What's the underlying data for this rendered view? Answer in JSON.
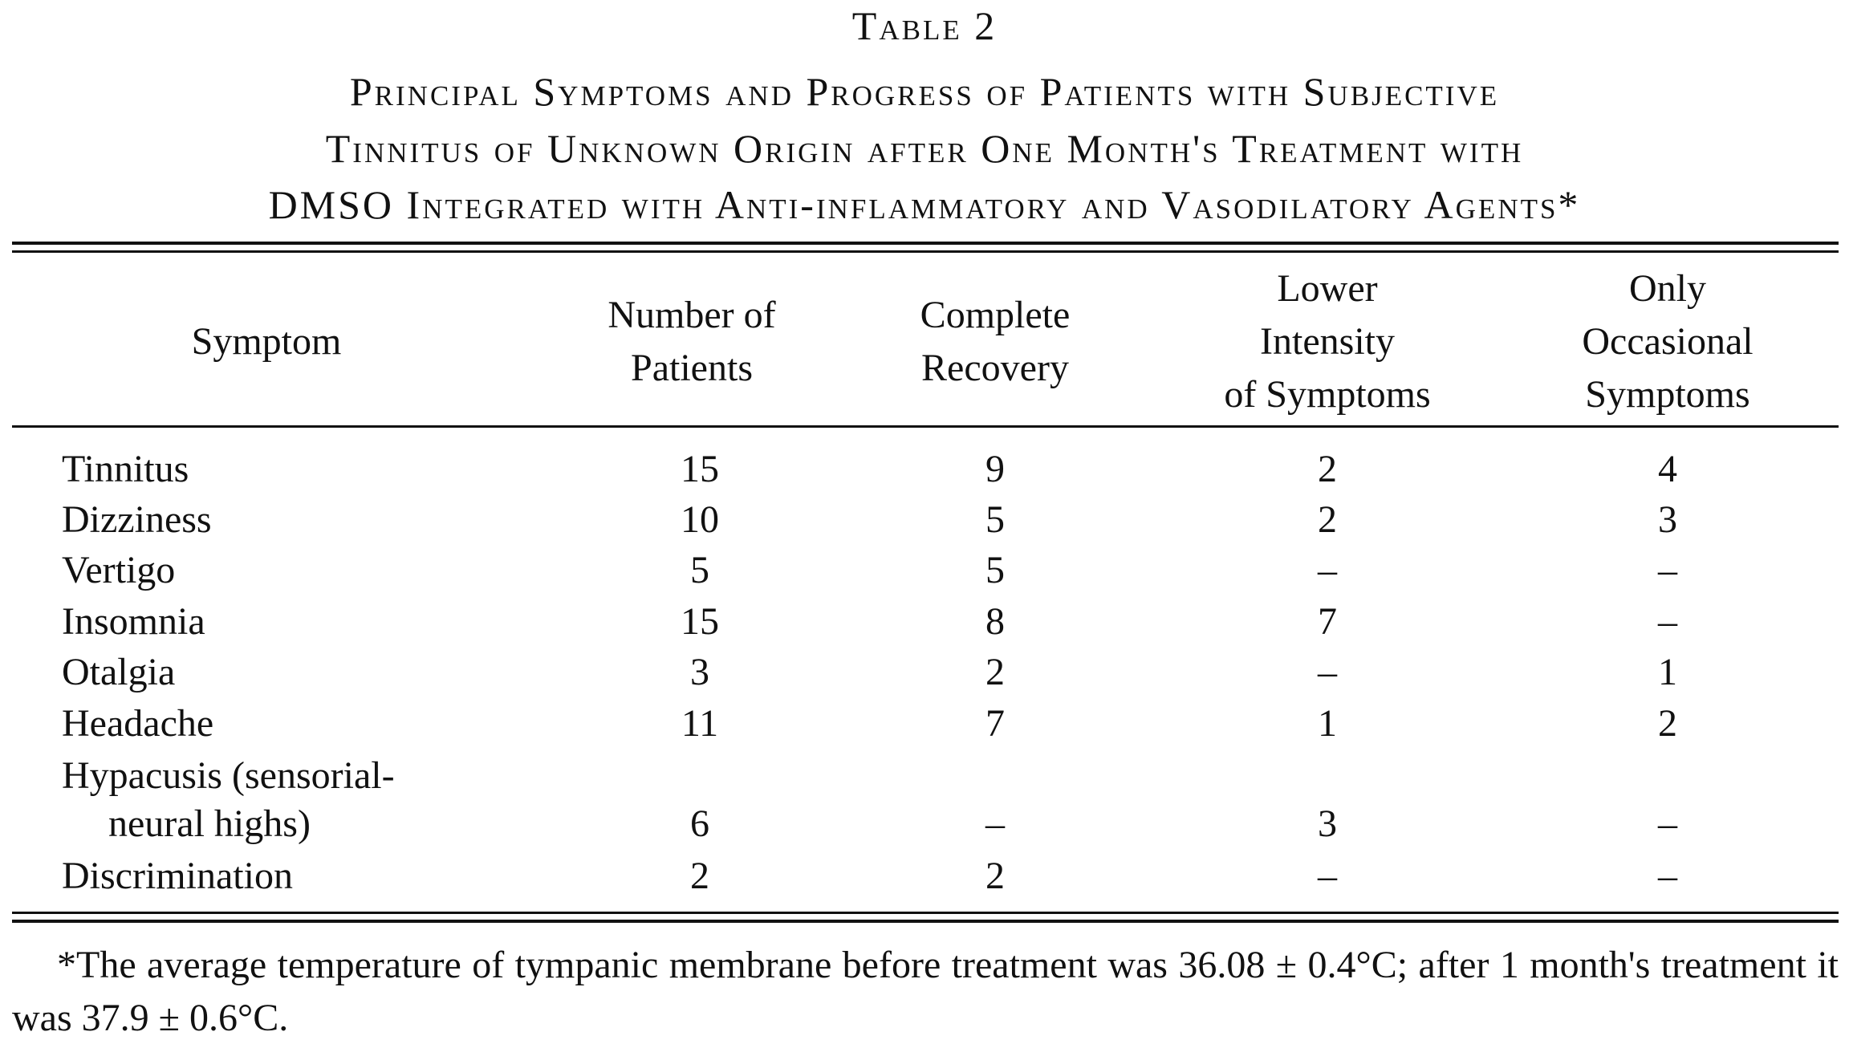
{
  "table_label": "Table 2",
  "title_lines": [
    "Principal Symptoms and Progress of Patients with Subjective",
    "Tinnitus of Unknown Origin after One Month's Treatment with",
    "DMSO Integrated with Anti-inflammatory and Vasodilatory Agents*"
  ],
  "table": {
    "header": [
      [
        "Symptom"
      ],
      [
        "Number of",
        "Patients"
      ],
      [
        "Complete",
        "Recovery"
      ],
      [
        "Lower",
        "Intensity",
        "of Symptoms"
      ],
      [
        "Only",
        "Occasional",
        "Symptoms"
      ]
    ],
    "rows": [
      [
        [
          "Tinnitus"
        ],
        15,
        9,
        2,
        4
      ],
      [
        [
          "Dizziness"
        ],
        10,
        5,
        2,
        3
      ],
      [
        [
          "Vertigo"
        ],
        5,
        5,
        "–",
        "–"
      ],
      [
        [
          "Insomnia"
        ],
        15,
        8,
        7,
        "–"
      ],
      [
        [
          "Otalgia"
        ],
        3,
        2,
        "–",
        1
      ],
      [
        [
          "Headache"
        ],
        11,
        7,
        1,
        2
      ],
      [
        [
          "Hypacusis (sensorial-",
          "neural highs)"
        ],
        6,
        "–",
        3,
        "–"
      ],
      [
        [
          "Discrimination"
        ],
        2,
        2,
        "–",
        "–"
      ]
    ]
  },
  "footnote": "*The average temperature of tympanic membrane before treatment was 36.08 ± 0.4°C; after 1 month's treatment it was 37.9 ± 0.6°C."
}
